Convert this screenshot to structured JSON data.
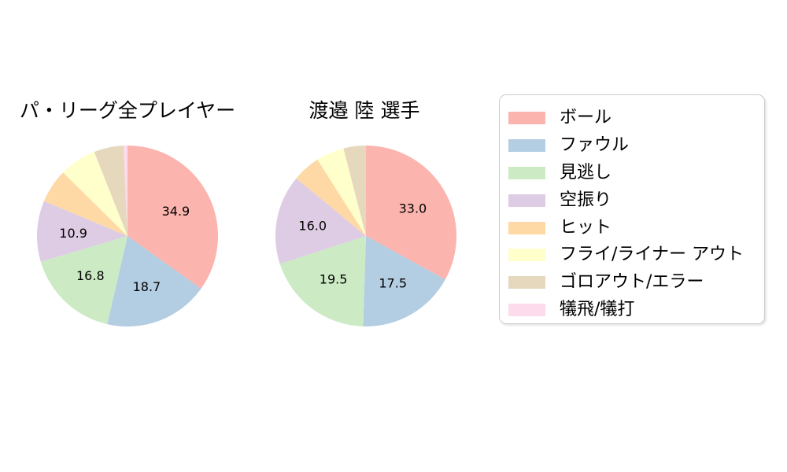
{
  "figure": {
    "background_color": "#ffffff",
    "text_color": "#000000"
  },
  "chart_data": [
    {
      "type": "pie",
      "title": "パ・リーグ全プレイヤー",
      "categories": [
        "ボール",
        "ファウル",
        "見逃し",
        "空振り",
        "ヒット",
        "フライ/ライナー アウト",
        "ゴロアウト/エラー",
        "犠飛/犠打"
      ],
      "values": [
        34.9,
        18.7,
        16.8,
        10.9,
        6.1,
        6.6,
        5.3,
        0.7
      ],
      "visible_value_labels": [
        "34.9",
        "18.7",
        "16.8",
        "10.9"
      ],
      "label_threshold": 10,
      "label_distance_ratio": 0.6,
      "start_angle": "12-oclock",
      "direction": "clockwise"
    },
    {
      "type": "pie",
      "title": "渡邉 陸 選手",
      "categories": [
        "ボール",
        "ファウル",
        "見逃し",
        "空振り",
        "ヒット",
        "フライ/ライナー アウト",
        "ゴロアウト/エラー",
        "犠飛/犠打"
      ],
      "values": [
        33.0,
        17.5,
        19.5,
        16.0,
        5.0,
        5.0,
        4.0,
        0.0
      ],
      "visible_value_labels": [
        "33.0",
        "17.5",
        "19.5",
        "16.0"
      ],
      "label_threshold": 10,
      "label_distance_ratio": 0.6,
      "start_angle": "12-oclock",
      "direction": "clockwise"
    }
  ],
  "legend": {
    "position": "right",
    "border_color": "#cccccc",
    "background_color": "#ffffff",
    "items": [
      {
        "label": "ボール",
        "color": "#fbb4ae"
      },
      {
        "label": "ファウル",
        "color": "#b3cde3"
      },
      {
        "label": "見逃し",
        "color": "#ccebc5"
      },
      {
        "label": "空振り",
        "color": "#decbe4"
      },
      {
        "label": "ヒット",
        "color": "#fed9a6"
      },
      {
        "label": "フライ/ライナー アウト",
        "color": "#ffffcc"
      },
      {
        "label": "ゴロアウト/エラー",
        "color": "#e5d8bd"
      },
      {
        "label": "犠飛/犠打",
        "color": "#fddaec"
      }
    ]
  }
}
